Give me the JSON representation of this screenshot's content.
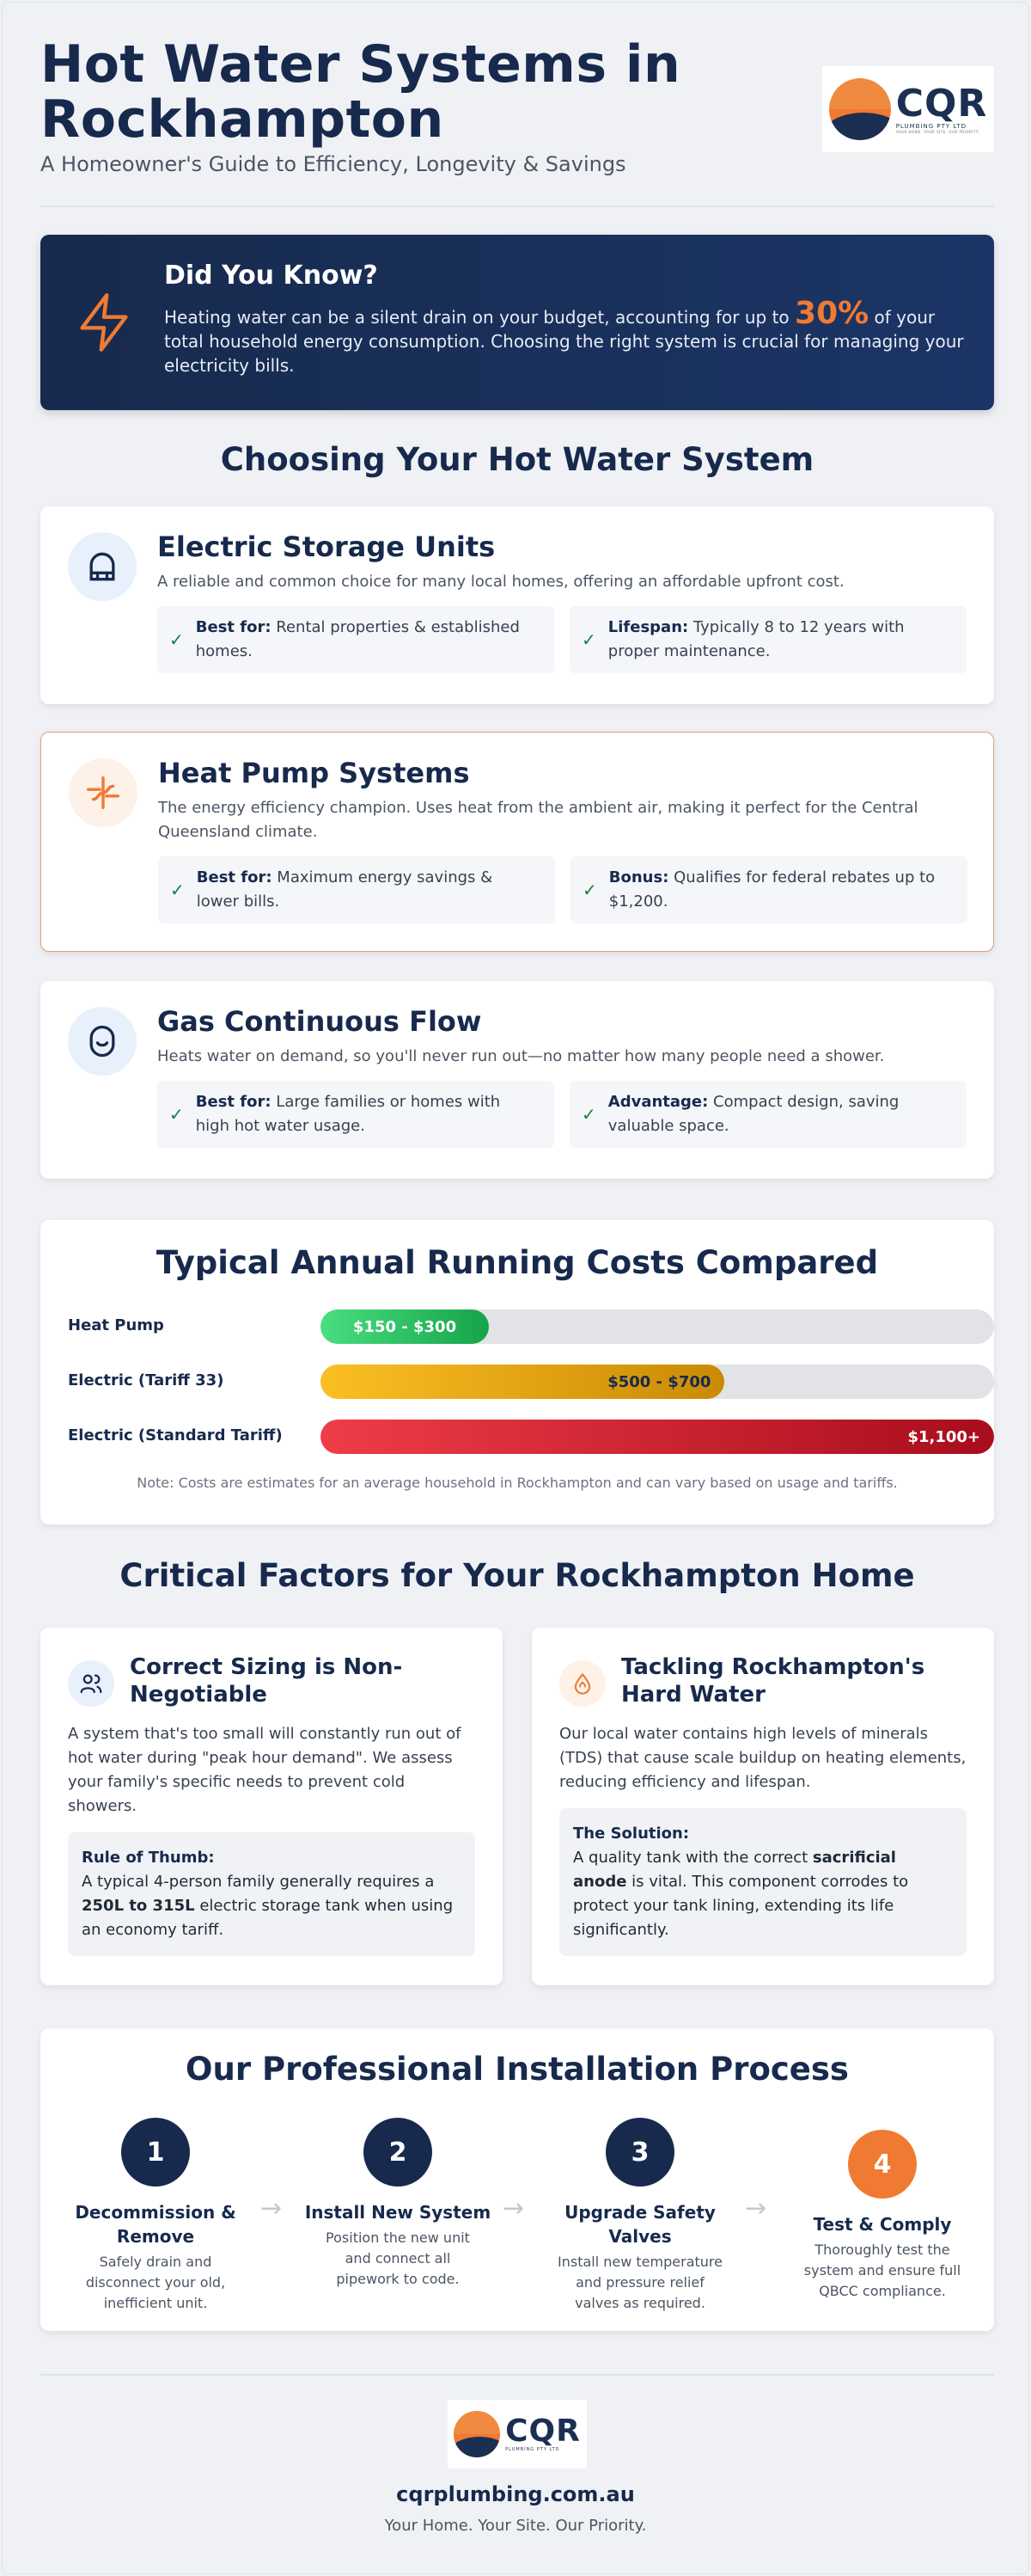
{
  "header": {
    "title": "Hot Water Systems in Rockhampton",
    "subtitle": "A Homeowner's Guide to Efficiency, Longevity & Savings",
    "logo": {
      "name": "CQR",
      "line1": "PLUMBING PTY LTD",
      "line2": "YOUR HOME. YOUR SITE. OUR PRIORITY."
    }
  },
  "did_you_know": {
    "title": "Did You Know?",
    "text_before": "Heating water can be a silent drain on your budget, accounting for up to ",
    "highlight": "30%",
    "text_after": " of your total household energy consumption. Choosing the right system is crucial for managing your electricity bills.",
    "icon": "lightning-bolt-icon",
    "accent": "#f07a32"
  },
  "choosing": {
    "title": "Choosing Your Hot Water System",
    "systems": [
      {
        "name": "Electric Storage Units",
        "desc": "A reliable and common choice for many local homes, offering an affordable upfront cost.",
        "icon": "water-tank-icon",
        "features": [
          {
            "label": "Best for:",
            "text": " Rental properties & established homes."
          },
          {
            "label": "Lifespan:",
            "text": " Typically 8 to 12 years with proper maintenance."
          }
        ]
      },
      {
        "name": "Heat Pump Systems",
        "desc": "The energy efficiency champion. Uses heat from the ambient air, making it perfect for the Central Queensland climate.",
        "icon": "heat-pump-icon",
        "features": [
          {
            "label": "Best for:",
            "text": " Maximum energy savings & lower bills."
          },
          {
            "label": "Bonus:",
            "text": " Qualifies for federal rebates up to $1,200."
          }
        ]
      },
      {
        "name": "Gas Continuous Flow",
        "desc": "Heats water on demand, so you'll never run out—no matter how many people need a shower.",
        "icon": "gas-flame-icon",
        "features": [
          {
            "label": "Best for:",
            "text": " Large families or homes with high hot water usage."
          },
          {
            "label": "Advantage:",
            "text": " Compact design, saving valuable space."
          }
        ]
      }
    ]
  },
  "costs": {
    "title": "Typical Annual Running Costs Compared",
    "rows": [
      {
        "label": "Heat Pump",
        "value": "$150 - $300",
        "fill": 0.25,
        "color": "#16a34a"
      },
      {
        "label": "Electric (Tariff 33)",
        "value": "$500 - $700",
        "fill": 0.6,
        "color": "#ca8a04"
      },
      {
        "label": "Electric (Standard Tariff)",
        "value": "$1,100+",
        "fill": 1.0,
        "color": "#a80d1c"
      }
    ],
    "note": "Note: Costs are estimates for an average household in Rockhampton and can vary based on usage and tariffs."
  },
  "factors": {
    "title": "Critical Factors for Your Rockhampton Home",
    "items": [
      {
        "title": "Correct Sizing is Non-Negotiable",
        "icon": "users-icon",
        "desc": "A system that's too small will constantly run out of hot water during \"peak hour demand\". We assess your family's specific needs to prevent cold showers.",
        "box_title": "Rule of Thumb:",
        "box_a": "A typical 4-person family generally requires a ",
        "box_b": "250L to 315L",
        "box_c": " electric storage tank when using an economy tariff."
      },
      {
        "title": "Tackling Rockhampton's Hard Water",
        "icon": "water-drop-icon",
        "desc": "Our local water contains high levels of minerals (TDS) that cause scale buildup on heating elements, reducing efficiency and lifespan.",
        "box_title": "The Solution:",
        "box_a": "A quality tank with the correct ",
        "box_b": "sacrificial anode",
        "box_c": " is vital. This component corrodes to protect your tank lining, extending its life significantly."
      }
    ]
  },
  "process": {
    "title": "Our Professional Installation Process",
    "steps": [
      {
        "num": "1",
        "title": "Decommission & Remove",
        "desc": "Safely drain and disconnect your old, inefficient unit."
      },
      {
        "num": "2",
        "title": "Install New System",
        "desc": "Position the new unit and connect all pipework to code."
      },
      {
        "num": "3",
        "title": "Upgrade Safety Valves",
        "desc": "Install new temperature and pressure relief valves as required."
      },
      {
        "num": "4",
        "title": "Test & Comply",
        "desc": "Thoroughly test the system and ensure full QBCC compliance."
      }
    ],
    "arrow": "→"
  },
  "footer": {
    "url": "cqrplumbing.com.au",
    "tagline": "Your Home. Your Site. Our Priority."
  }
}
